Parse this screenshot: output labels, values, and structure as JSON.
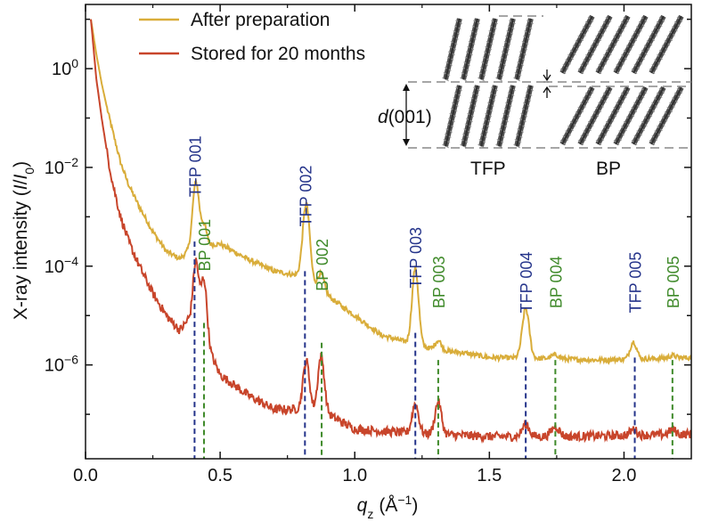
{
  "chart_data": {
    "type": "line",
    "xlabel": {
      "symbol": "q",
      "sub": "z",
      "unit": "(Å",
      "sup": "−1",
      "close": ")"
    },
    "ylabel": {
      "prefix": "X-ray intensity (",
      "I": "I",
      "slash": "/",
      "I0": "I",
      "sub": "0",
      "close": ")"
    },
    "xlim": [
      0.0,
      2.25
    ],
    "ylim_log10": [
      -7.9,
      1.3
    ],
    "yscale": "log",
    "x_ticks": [
      {
        "v": 0.0,
        "label": "0.0"
      },
      {
        "v": 0.5,
        "label": "0.5"
      },
      {
        "v": 1.0,
        "label": "1.0"
      },
      {
        "v": 1.5,
        "label": "1.5"
      },
      {
        "v": 2.0,
        "label": "2.0"
      }
    ],
    "y_ticks": [
      {
        "exp": 0,
        "base": "10",
        "sup": "0"
      },
      {
        "exp": -2,
        "base": "10",
        "sup": "−2"
      },
      {
        "exp": -4,
        "base": "10",
        "sup": "−4"
      },
      {
        "exp": -6,
        "base": "10",
        "sup": "−6"
      }
    ],
    "series": [
      {
        "name": "After preparation",
        "color": "#d9ad3a",
        "baseline": [
          [
            0.02,
            1.0
          ],
          [
            0.04,
            0.3
          ],
          [
            0.06,
            -0.3
          ],
          [
            0.08,
            -0.8
          ],
          [
            0.1,
            -1.25
          ],
          [
            0.13,
            -1.9
          ],
          [
            0.16,
            -2.35
          ],
          [
            0.2,
            -2.8
          ],
          [
            0.25,
            -3.3
          ],
          [
            0.3,
            -3.7
          ],
          [
            0.35,
            -3.85
          ],
          [
            0.4,
            -3.6
          ],
          [
            0.5,
            -3.55
          ],
          [
            0.6,
            -3.85
          ],
          [
            0.7,
            -4.1
          ],
          [
            0.8,
            -4.2
          ],
          [
            0.9,
            -4.6
          ],
          [
            1.0,
            -5.0
          ],
          [
            1.1,
            -5.4
          ],
          [
            1.2,
            -5.55
          ],
          [
            1.3,
            -5.7
          ],
          [
            1.4,
            -5.75
          ],
          [
            1.5,
            -5.85
          ],
          [
            1.7,
            -5.87
          ],
          [
            1.9,
            -5.9
          ],
          [
            2.25,
            -5.85
          ]
        ],
        "peaks": [
          [
            0.41,
            1.3,
            0.012
          ],
          [
            0.44,
            0.4,
            0.01
          ],
          [
            0.82,
            1.55,
            0.013
          ],
          [
            0.875,
            0.35,
            0.012
          ],
          [
            1.225,
            1.55,
            0.012
          ],
          [
            1.31,
            0.2,
            0.012
          ],
          [
            1.635,
            1.0,
            0.013
          ],
          [
            1.745,
            0.08,
            0.015
          ],
          [
            2.035,
            0.35,
            0.012
          ],
          [
            2.18,
            0.05,
            0.012
          ]
        ]
      },
      {
        "name": "Stored for 20 months",
        "color": "#c8452b",
        "baseline": [
          [
            0.02,
            1.0
          ],
          [
            0.04,
            -0.2
          ],
          [
            0.06,
            -1.0
          ],
          [
            0.08,
            -1.7
          ],
          [
            0.1,
            -2.3
          ],
          [
            0.13,
            -3.0
          ],
          [
            0.16,
            -3.5
          ],
          [
            0.2,
            -4.0
          ],
          [
            0.25,
            -4.55
          ],
          [
            0.3,
            -5.0
          ],
          [
            0.35,
            -5.3
          ],
          [
            0.38,
            -5.1
          ],
          [
            0.45,
            -5.6
          ],
          [
            0.5,
            -6.2
          ],
          [
            0.6,
            -6.6
          ],
          [
            0.7,
            -6.9
          ],
          [
            0.8,
            -6.9
          ],
          [
            0.9,
            -7.0
          ],
          [
            1.0,
            -7.3
          ],
          [
            1.2,
            -7.38
          ],
          [
            1.5,
            -7.45
          ],
          [
            1.8,
            -7.45
          ],
          [
            2.25,
            -7.4
          ]
        ],
        "peaks": [
          [
            0.41,
            1.4,
            0.011
          ],
          [
            0.44,
            1.25,
            0.011
          ],
          [
            0.82,
            1.0,
            0.012
          ],
          [
            0.875,
            1.15,
            0.012
          ],
          [
            1.225,
            0.6,
            0.012
          ],
          [
            1.31,
            0.65,
            0.012
          ],
          [
            1.635,
            0.25,
            0.013
          ],
          [
            1.745,
            0.2,
            0.015
          ],
          [
            2.035,
            0.12,
            0.012
          ],
          [
            2.18,
            0.1,
            0.012
          ]
        ]
      }
    ],
    "peak_lines": [
      {
        "x": 0.405,
        "label": "TFP 001",
        "family": "TFP",
        "y_top": -3.5
      },
      {
        "x": 0.44,
        "label": "BP 001",
        "family": "BP",
        "y_top": -5.15
      },
      {
        "x": 0.815,
        "label": "TFP 002",
        "family": "TFP",
        "y_top": -4.1
      },
      {
        "x": 0.877,
        "label": "BP 002",
        "family": "BP",
        "y_top": -5.55
      },
      {
        "x": 1.225,
        "label": "TFP 003",
        "family": "TFP",
        "y_top": -5.35
      },
      {
        "x": 1.31,
        "label": "BP 003",
        "family": "BP",
        "y_top": -5.9
      },
      {
        "x": 1.635,
        "label": "TFP 004",
        "family": "TFP",
        "y_top": -5.85
      },
      {
        "x": 1.745,
        "label": "BP 004",
        "family": "BP",
        "y_top": -5.9
      },
      {
        "x": 2.04,
        "label": "TFP 005",
        "family": "TFP",
        "y_top": -5.85
      },
      {
        "x": 2.18,
        "label": "BP 005",
        "family": "BP",
        "y_top": -5.9
      }
    ],
    "colors": {
      "TFP": "#24338a",
      "BP": "#3f8a2a",
      "axis": "#111111"
    },
    "legend": {
      "placement": "top-left"
    },
    "inset": {
      "label_d": "d",
      "label_rest": "(001)",
      "label_left": "TFP",
      "label_right": "BP"
    }
  }
}
